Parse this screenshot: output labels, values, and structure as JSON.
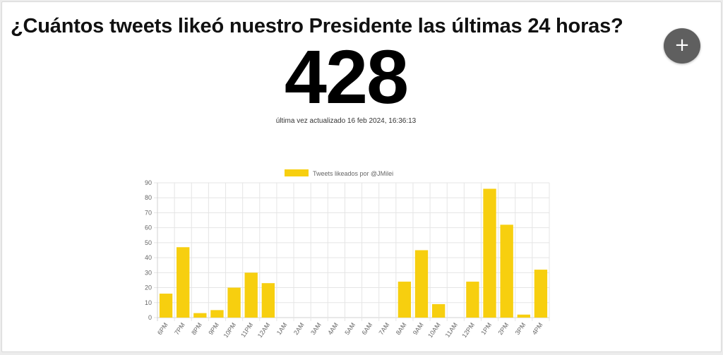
{
  "header": {
    "title": "¿Cuántos tweets likeó nuestro Presidente las últimas 24 horas?"
  },
  "counter": {
    "value": "428",
    "updated_text": "última vez actualizado 16 feb 2024, 16:36:13"
  },
  "fab": {
    "icon": "plus-icon",
    "label": "+"
  },
  "colors": {
    "bar": "#f7cf0f",
    "grid": "#e5e5e5",
    "axis": "#d0d0d0"
  },
  "chart_data": {
    "type": "bar",
    "series": [
      {
        "name": "Tweets likeados por @JMilei",
        "values": [
          16,
          47,
          3,
          5,
          20,
          30,
          23,
          0,
          0,
          0,
          0,
          0,
          0,
          0,
          24,
          45,
          9,
          0,
          24,
          86,
          62,
          2,
          32
        ]
      }
    ],
    "categories": [
      "6PM",
      "7PM",
      "8PM",
      "9PM",
      "10PM",
      "11PM",
      "12AM",
      "1AM",
      "2AM",
      "3AM",
      "4AM",
      "5AM",
      "6AM",
      "7AM",
      "8AM",
      "9AM",
      "10AM",
      "11AM",
      "12PM",
      "1PM",
      "2PM",
      "3PM",
      "4PM"
    ],
    "yticks": [
      0,
      10,
      20,
      30,
      40,
      50,
      60,
      70,
      80,
      90
    ],
    "ylim": [
      0,
      90
    ],
    "title": "",
    "xlabel": "",
    "ylabel": "",
    "grid": true,
    "legend": "top-center"
  }
}
